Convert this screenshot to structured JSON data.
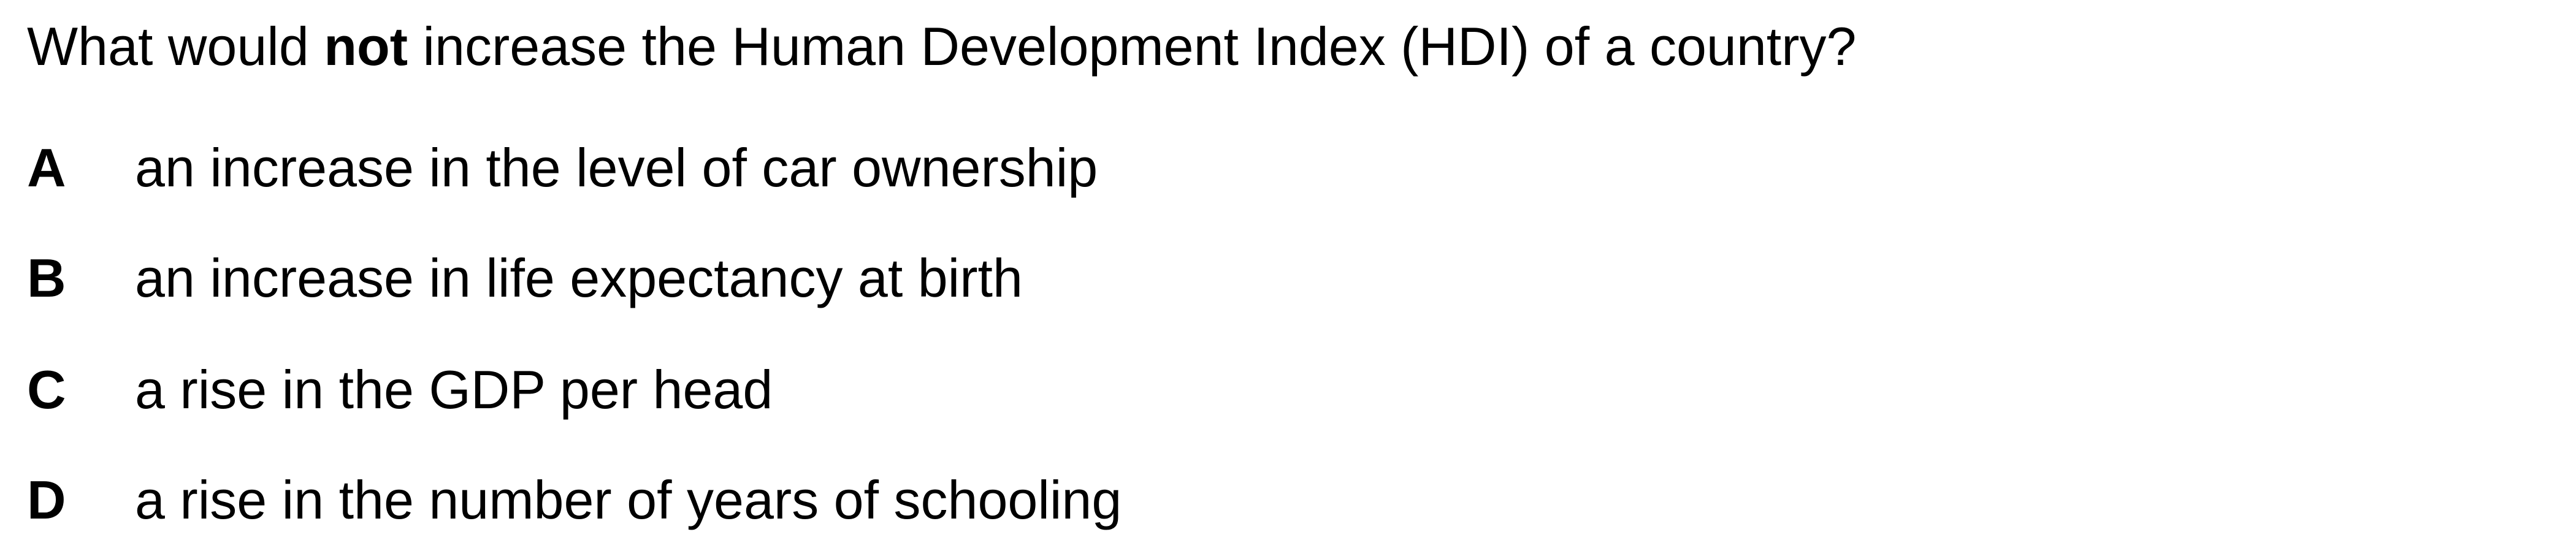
{
  "question": {
    "before": "What would ",
    "emphasis": "not",
    "after": " increase the Human Development Index (HDI) of a country?"
  },
  "options": [
    {
      "letter": "A",
      "text": "an increase in the level of car ownership"
    },
    {
      "letter": "B",
      "text": "an increase in life expectancy at birth"
    },
    {
      "letter": "C",
      "text": "a rise in the GDP per head"
    },
    {
      "letter": "D",
      "text": "a rise in the number of years of schooling"
    }
  ]
}
